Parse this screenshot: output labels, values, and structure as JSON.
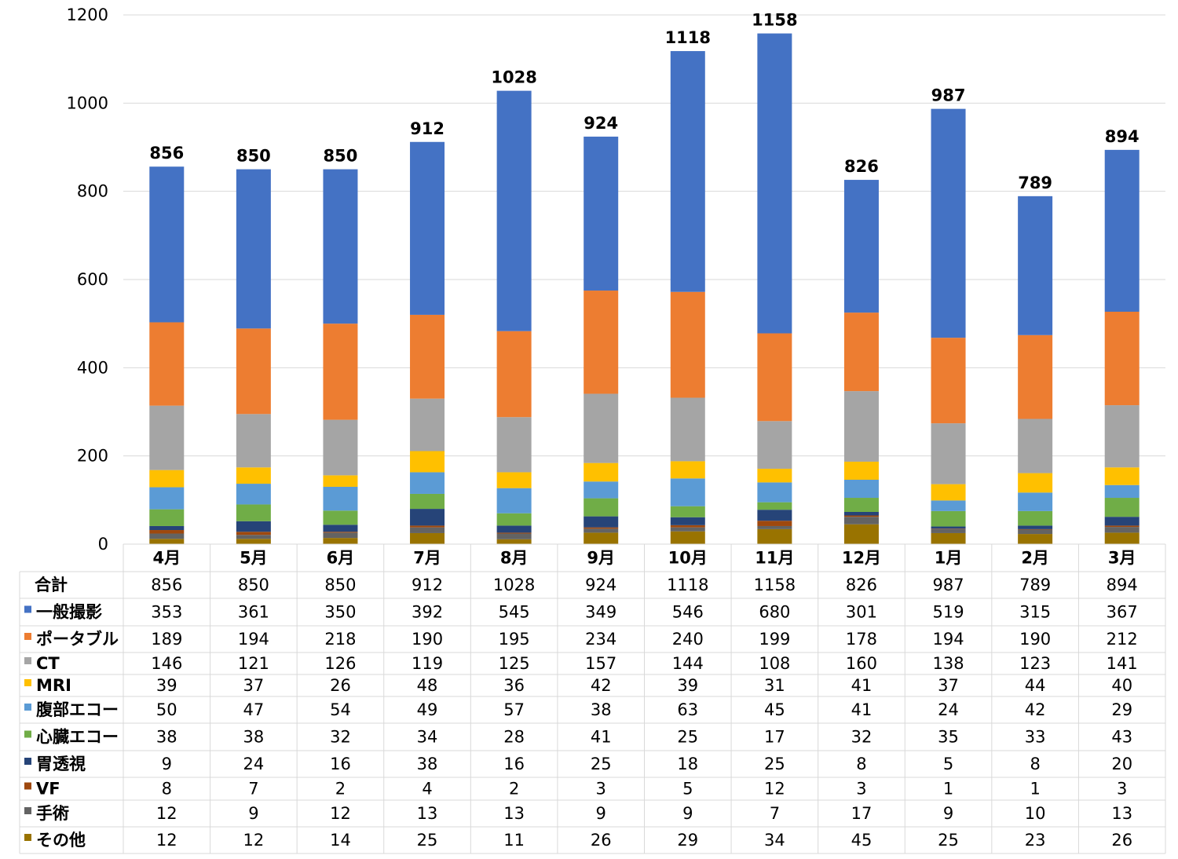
{
  "chart_data": {
    "type": "bar",
    "stacked": true,
    "title": "",
    "xlabel": "",
    "ylabel": "",
    "ylim": [
      0,
      1200
    ],
    "yticks": [
      0,
      200,
      400,
      600,
      800,
      1000,
      1200
    ],
    "grid": true,
    "legend": "data-table",
    "categories": [
      "4月",
      "5月",
      "6月",
      "7月",
      "8月",
      "9月",
      "10月",
      "11月",
      "12月",
      "1月",
      "2月",
      "3月"
    ],
    "totals_label": "合計",
    "totals": [
      856,
      850,
      850,
      912,
      1028,
      924,
      1118,
      1158,
      826,
      987,
      789,
      894
    ],
    "series": [
      {
        "name": "一般撮影",
        "color": "#4472c4",
        "values": [
          353,
          361,
          350,
          392,
          545,
          349,
          546,
          680,
          301,
          519,
          315,
          367
        ]
      },
      {
        "name": "ポータブル",
        "color": "#ed7d31",
        "values": [
          189,
          194,
          218,
          190,
          195,
          234,
          240,
          199,
          178,
          194,
          190,
          212
        ]
      },
      {
        "name": "CT",
        "color": "#a5a5a5",
        "values": [
          146,
          121,
          126,
          119,
          125,
          157,
          144,
          108,
          160,
          138,
          123,
          141
        ]
      },
      {
        "name": "MRI",
        "color": "#ffc000",
        "values": [
          39,
          37,
          26,
          48,
          36,
          42,
          39,
          31,
          41,
          37,
          44,
          40
        ]
      },
      {
        "name": "腹部エコー",
        "color": "#5b9bd5",
        "values": [
          50,
          47,
          54,
          49,
          57,
          38,
          63,
          45,
          41,
          24,
          42,
          29
        ]
      },
      {
        "name": "心臓エコー",
        "color": "#70ad47",
        "values": [
          38,
          38,
          32,
          34,
          28,
          41,
          25,
          17,
          32,
          35,
          33,
          43
        ]
      },
      {
        "name": "胃透視",
        "color": "#264478",
        "values": [
          9,
          24,
          16,
          38,
          16,
          25,
          18,
          25,
          8,
          5,
          8,
          20
        ]
      },
      {
        "name": "VF",
        "color": "#9e480e",
        "values": [
          8,
          7,
          2,
          4,
          2,
          3,
          5,
          12,
          3,
          1,
          1,
          3
        ]
      },
      {
        "name": "手術",
        "color": "#636363",
        "values": [
          12,
          9,
          12,
          13,
          13,
          9,
          9,
          7,
          17,
          9,
          10,
          13
        ]
      },
      {
        "name": "その他",
        "color": "#997300",
        "values": [
          12,
          12,
          14,
          25,
          11,
          26,
          29,
          34,
          45,
          25,
          23,
          26
        ]
      }
    ]
  }
}
